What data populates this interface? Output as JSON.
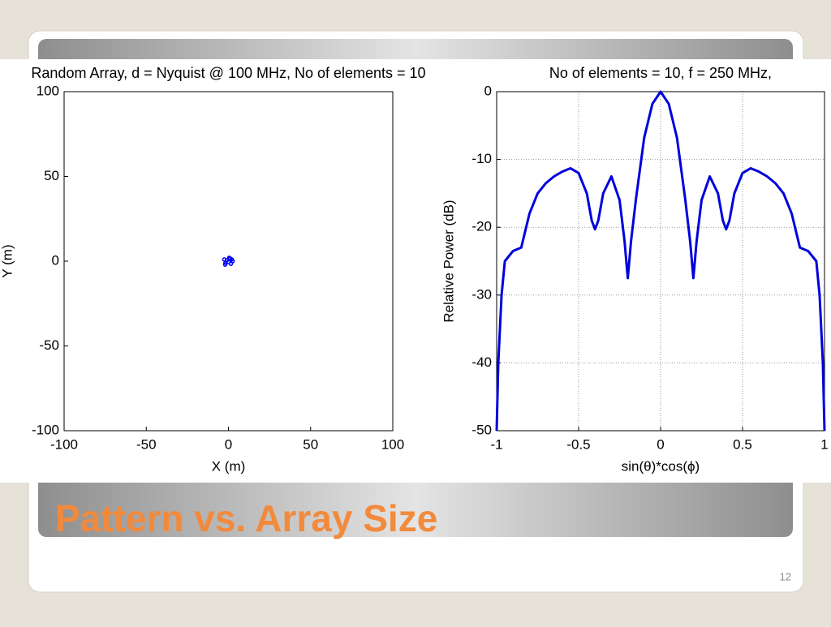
{
  "chart_data": [
    {
      "type": "scatter",
      "title": "Random Array, d = Nyquist @ 100 MHz, No of elements = 10",
      "x_label": "X (m)",
      "y_label": "Y (m)",
      "x": [
        -2.5,
        -1.8,
        -1,
        0.5,
        1.5,
        2.5,
        -2,
        1,
        0,
        2
      ],
      "values": [
        1,
        -1,
        0.5,
        2,
        -1.5,
        0,
        -2,
        1.5,
        -0.5,
        1
      ],
      "color": "#0000ff",
      "xlim": [
        -100,
        100
      ],
      "ylim": [
        -100,
        100
      ],
      "xticks": [
        -100,
        -50,
        0,
        50,
        100
      ],
      "yticks": [
        -100,
        -50,
        0,
        50,
        100
      ],
      "grid": false
    },
    {
      "type": "line",
      "title": "No of elements = 10, f = 250 MHz,",
      "x_label": "sin(θ)*cos(ϕ)",
      "y_label": "Relative Power (dB)",
      "x": [
        -1,
        -0.99,
        -0.97,
        -0.95,
        -0.9,
        -0.85,
        -0.8,
        -0.75,
        -0.7,
        -0.65,
        -0.6,
        -0.55,
        -0.5,
        -0.45,
        -0.42,
        -0.4,
        -0.38,
        -0.35,
        -0.3,
        -0.25,
        -0.22,
        -0.2,
        -0.18,
        -0.15,
        -0.1,
        -0.05,
        0,
        0.05,
        0.1,
        0.15,
        0.18,
        0.2,
        0.22,
        0.25,
        0.3,
        0.35,
        0.38,
        0.4,
        0.42,
        0.45,
        0.5,
        0.55,
        0.6,
        0.65,
        0.7,
        0.75,
        0.8,
        0.85,
        0.9,
        0.95,
        0.97,
        0.99,
        1
      ],
      "values": [
        -50,
        -40,
        -30,
        -25,
        -23.5,
        -23,
        -18,
        -15,
        -13.5,
        -12.5,
        -11.8,
        -11.3,
        -12,
        -15,
        -19,
        -20.3,
        -19,
        -15,
        -12.5,
        -16,
        -22,
        -27.5,
        -22,
        -15.8,
        -6.8,
        -1.8,
        0,
        -1.8,
        -6.8,
        -15.8,
        -22,
        -27.5,
        -22,
        -16,
        -12.5,
        -15,
        -19,
        -20.3,
        -19,
        -15,
        -12,
        -11.3,
        -11.8,
        -12.5,
        -13.5,
        -15,
        -18,
        -23,
        -23.5,
        -25,
        -30,
        -40,
        -50
      ],
      "color": "#0000dd",
      "xlim": [
        -1,
        1
      ],
      "ylim": [
        -50,
        0
      ],
      "xticks": [
        -1,
        -0.5,
        0,
        0.5,
        1
      ],
      "yticks": [
        0,
        -10,
        -20,
        -30,
        -40,
        -50
      ],
      "grid": true
    }
  ],
  "slide": {
    "title": "Pattern vs. Array Size",
    "page_number": "12"
  }
}
